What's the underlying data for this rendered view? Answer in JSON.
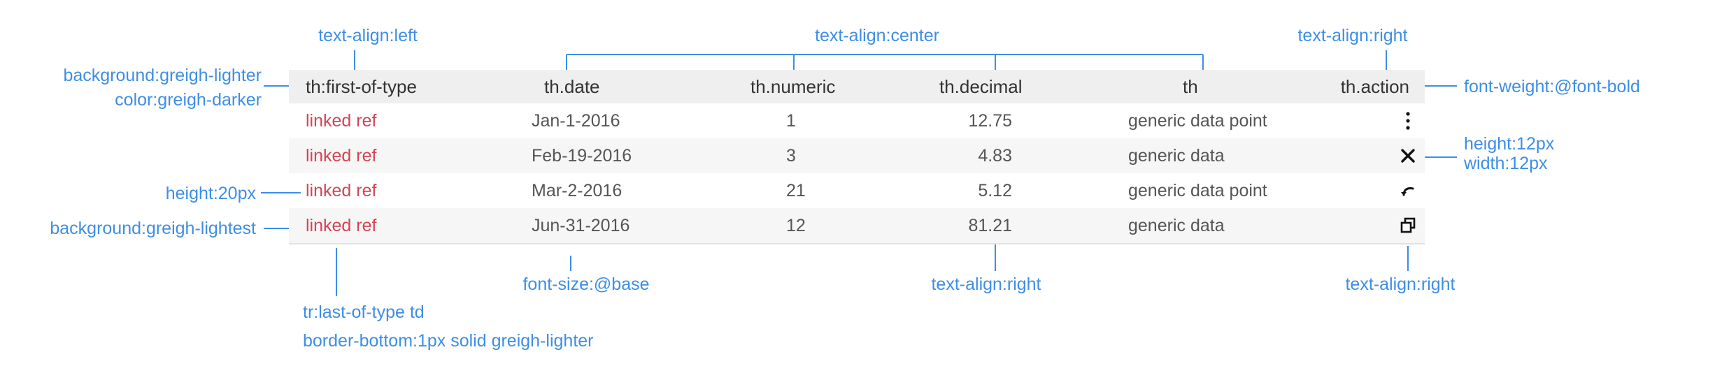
{
  "annotations": {
    "top_align_left": "text-align:left",
    "top_align_center": "text-align:center",
    "top_align_right": "text-align:right",
    "left_background": "background:greigh-lighter",
    "left_color": "color:greigh-darker",
    "right_font_weight": "font-weight:@font-bold",
    "right_height": "height:12px",
    "right_width": "width:12px",
    "left_height": "height:20px",
    "left_background_lightest": "background:greigh-lightest",
    "bottom_last_of_type": "tr:last-of-type td",
    "bottom_border": "border-bottom:1px solid greigh-lighter",
    "bottom_font_size": "font-size:@base",
    "bottom_align_right_decimal": "text-align:right",
    "bottom_align_right_action": "text-align:right"
  },
  "table": {
    "headers": [
      "th:first-of-type",
      "th.date",
      "th.numeric",
      "th.decimal",
      "th",
      "th.action"
    ],
    "rows": [
      {
        "ref": "linked ref",
        "date": "Jan-1-2016",
        "numeric": "1",
        "decimal": "12.75",
        "text": "generic data point",
        "action_icon": "more-vertical-icon"
      },
      {
        "ref": "linked ref",
        "date": "Feb-19-2016",
        "numeric": "3",
        "decimal": "4.83",
        "text": "generic data",
        "action_icon": "close-icon"
      },
      {
        "ref": "linked ref",
        "date": "Mar-2-2016",
        "numeric": "21",
        "decimal": "5.12",
        "text": "generic data point",
        "action_icon": "undo-icon"
      },
      {
        "ref": "linked ref",
        "date": "Jun-31-2016",
        "numeric": "12",
        "decimal": "81.21",
        "text": "generic data",
        "action_icon": "copy-icon"
      }
    ]
  },
  "colors": {
    "annotation": "#3d8ee6",
    "link": "#d24456",
    "header_bg": "#efefef",
    "stripe_bg": "#f6f6f6",
    "body_text": "#555555"
  }
}
